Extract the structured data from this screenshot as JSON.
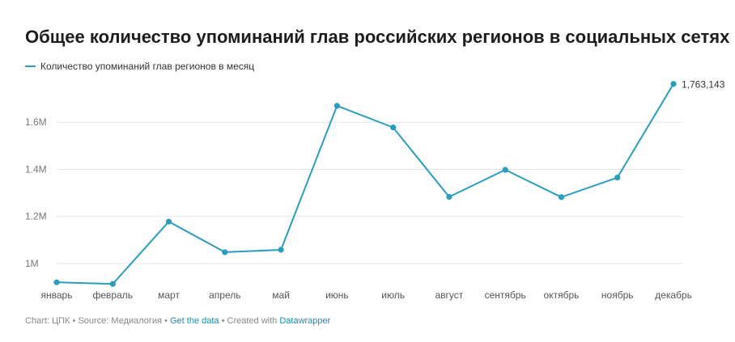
{
  "header": {
    "title": "Общее количество упоминаний глав российских регионов в социальных сетях"
  },
  "footer": {
    "chart_label": "Chart: ЦПК",
    "sep1": " • ",
    "source_label": "Source: Медиалогия",
    "sep2": " • ",
    "get_data": "Get the data",
    "sep3": " • ",
    "created_with": "Created with ",
    "datawrapper": "Datawrapper"
  },
  "colors": {
    "line": "#2a9dbf",
    "grid": "#e6e6e6",
    "link": "#1a8fb0"
  },
  "chart_data": {
    "type": "line",
    "title": "Общее количество упоминаний глав российских регионов в социальных сетях",
    "categories": [
      "январь",
      "февраль",
      "март",
      "апрель",
      "май",
      "июнь",
      "июль",
      "август",
      "сентябрь",
      "октябрь",
      "ноябрь",
      "декабрь"
    ],
    "series": [
      {
        "name": "Количество упоминаний глав регионов в месяц",
        "values": [
          920000,
          913000,
          1178000,
          1048000,
          1058000,
          1670000,
          1578000,
          1283000,
          1398000,
          1282000,
          1365000,
          1763143
        ]
      }
    ],
    "yticks": [
      1000000,
      1200000,
      1400000,
      1600000
    ],
    "ytick_labels": [
      "1M",
      "1.2M",
      "1.4M",
      "1.6M"
    ],
    "ylim": [
      900000,
      1800000
    ],
    "end_label": "1,763,143",
    "grid": true,
    "legend_position": "top-left"
  }
}
